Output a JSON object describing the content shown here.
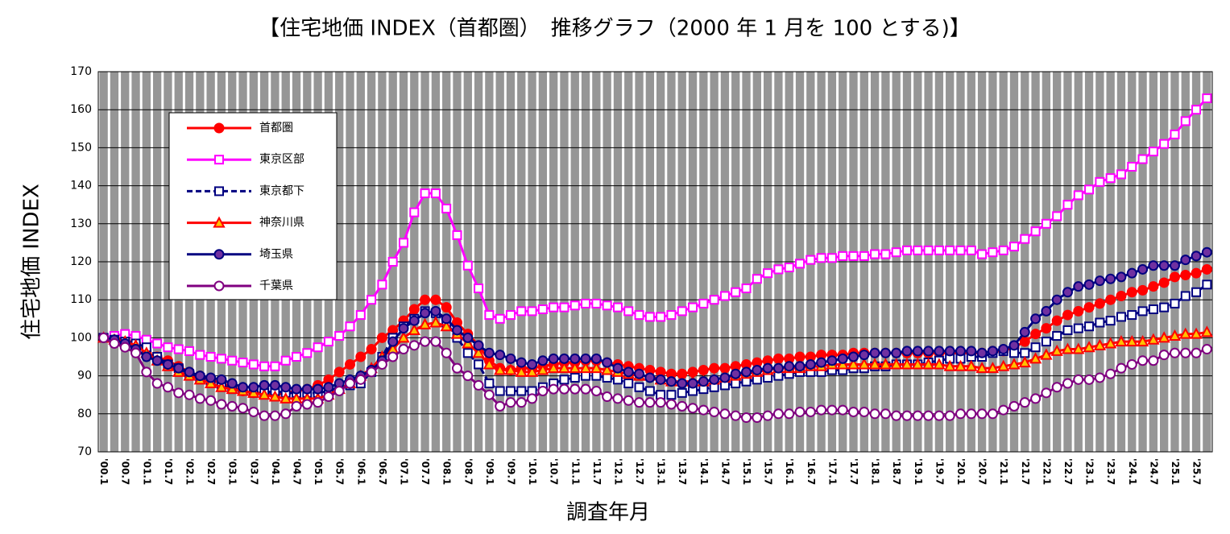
{
  "chart_data": {
    "type": "line",
    "title": "【住宅地価 INDEX（首都圏）　推移グラフ（2000 年 1 月を 100 とする)】",
    "y_label": "住宅地価 INDEX",
    "x_label": "調査年月",
    "categories": [
      "'00.1",
      null,
      "'00.7",
      null,
      "'01.1",
      null,
      "'01.7",
      null,
      "'02.1",
      null,
      "'02.7",
      null,
      "'03.1",
      null,
      "'03.7",
      null,
      "'04.1",
      null,
      "'04.7",
      null,
      "'05.1",
      null,
      "'05.7",
      null,
      "'06.1",
      null,
      "'06.7",
      null,
      "'07.1",
      null,
      "'07.7",
      null,
      "'08.1",
      null,
      "'08.7",
      null,
      "'09.1",
      null,
      "'09.7",
      null,
      "'10.1",
      null,
      "'10.7",
      null,
      "'11.1",
      null,
      "'11.7",
      null,
      "'12.1",
      null,
      "'12.7",
      null,
      "'13.1",
      null,
      "'13.7",
      null,
      "'14.1",
      null,
      "'14.7",
      null,
      "'15.1",
      null,
      "'15.7",
      null,
      "'16.1",
      null,
      "'16.7",
      null,
      "'17.1",
      null,
      "'17.7",
      null,
      "'18.1",
      null,
      "'18.7",
      null,
      "'19.1",
      null,
      "'19.7",
      null,
      "'20.1",
      null,
      "'20.7",
      null,
      "'21.1",
      null,
      "'21.7",
      null,
      "'22.1",
      null,
      "'22.7",
      null,
      "'23.1",
      null,
      "'23.7",
      null,
      "'24.1",
      null,
      "'24.7",
      null,
      "'25.1",
      null,
      "'25.7",
      null
    ],
    "ylim": [
      70,
      170
    ],
    "yticks": [
      70,
      80,
      90,
      100,
      110,
      120,
      130,
      140,
      150,
      160,
      170
    ],
    "grid": true,
    "series": [
      {
        "name": "首都圏",
        "color": "#ff0000",
        "marker": "circle",
        "marker_fill": "#ff0000",
        "dashed": false,
        "values": [
          100,
          100,
          99.5,
          98.5,
          96,
          95,
          94,
          92.5,
          91,
          90,
          89,
          88,
          87,
          86,
          85.5,
          85.5,
          85,
          85.5,
          86,
          86.5,
          87.5,
          89,
          91,
          93,
          95,
          97,
          100,
          102,
          104.5,
          107.5,
          110,
          110,
          108,
          104,
          101,
          98,
          94,
          92,
          91.5,
          92,
          92,
          92.5,
          93,
          93.5,
          93.5,
          94,
          94,
          93.5,
          93,
          92.5,
          92,
          91.5,
          91,
          90.5,
          90.5,
          91,
          91.5,
          92,
          92,
          92.5,
          93,
          93.5,
          94,
          94.5,
          94.5,
          95,
          95,
          95.5,
          95.5,
          95.5,
          96,
          96,
          96,
          96,
          96,
          96,
          96,
          96,
          96,
          96,
          96,
          96,
          96,
          96.5,
          96.5,
          97.5,
          99,
          101,
          102.5,
          104.5,
          106,
          107,
          108,
          109,
          110,
          111,
          112,
          112.5,
          113.5,
          114.5,
          116,
          116.5,
          117,
          118
        ]
      },
      {
        "name": "東京区部",
        "color": "#ff00ff",
        "marker": "square",
        "marker_fill": "#ffffff",
        "dashed": false,
        "values": [
          100,
          100.5,
          101,
          100.5,
          99.5,
          98.5,
          97.5,
          97,
          96.5,
          95.5,
          95,
          94.5,
          94,
          93.5,
          93,
          92.5,
          92.5,
          94,
          95,
          96,
          97.5,
          99,
          100.5,
          103,
          106,
          110,
          114,
          120,
          125,
          133,
          138,
          138,
          134,
          127,
          119,
          113,
          106,
          105,
          106,
          107,
          107,
          107.5,
          108,
          108,
          108.5,
          109,
          109,
          108.5,
          108,
          107,
          106,
          105.5,
          105.5,
          106,
          107,
          108,
          109,
          110,
          111,
          112,
          113,
          115.5,
          117,
          118,
          118.5,
          119.5,
          120.5,
          121,
          121,
          121.5,
          121.5,
          121.5,
          122,
          122,
          122.5,
          123,
          123,
          123,
          123,
          123,
          123,
          123,
          122,
          122.5,
          123,
          124,
          126,
          128,
          130,
          132,
          135,
          137.5,
          139,
          141,
          142,
          143,
          145,
          147,
          149,
          151,
          153.5,
          157,
          160,
          163
        ]
      },
      {
        "name": "東京都下",
        "color": "#000080",
        "marker": "square",
        "marker_fill": "#ffffff",
        "dashed": true,
        "values": [
          100,
          99.5,
          99,
          98.5,
          97.5,
          95,
          93,
          92,
          90.5,
          89.5,
          88.5,
          87.5,
          86.5,
          86,
          85.5,
          85.5,
          86,
          85.5,
          85.5,
          85.5,
          85.5,
          86,
          87,
          87.5,
          88,
          91,
          95,
          100,
          103,
          105,
          107,
          106.5,
          104,
          100,
          96,
          93,
          88,
          86,
          86,
          86,
          86,
          87,
          88,
          89,
          89.5,
          90,
          90,
          89.5,
          89,
          88,
          87,
          86,
          85,
          85,
          85.5,
          86,
          86.5,
          87,
          87.5,
          88,
          88.5,
          89,
          89.5,
          90,
          90.5,
          91,
          91,
          91,
          91.5,
          91.5,
          92,
          92,
          92.5,
          92.5,
          93,
          93,
          93,
          93.5,
          94,
          94.5,
          94.5,
          95,
          95,
          96,
          96.5,
          96,
          96,
          97.5,
          99,
          100.5,
          102,
          102.5,
          103,
          104,
          104.5,
          105.5,
          106,
          107,
          107.5,
          108,
          109,
          111,
          112,
          114
        ]
      },
      {
        "name": "神奈川県",
        "color": "#ff0000",
        "marker": "triangle",
        "marker_fill": "#ffc000",
        "dashed": false,
        "values": [
          100,
          99.5,
          99,
          98,
          96,
          94,
          92.5,
          91,
          90,
          89,
          88,
          87,
          86.5,
          86,
          85.5,
          85,
          84.5,
          84,
          84,
          84,
          84,
          85,
          86.5,
          88,
          90,
          92,
          95,
          97,
          100,
          102,
          103.5,
          104,
          103,
          101,
          98.5,
          96,
          93,
          91.5,
          91.5,
          91,
          91,
          91.5,
          92,
          92,
          92,
          92,
          92,
          91.5,
          91,
          90.5,
          90,
          90,
          89,
          88.5,
          88.5,
          88.5,
          88.5,
          89,
          89.5,
          90,
          90.5,
          91,
          91.5,
          92,
          92,
          92,
          92.5,
          92.5,
          93,
          93,
          93,
          93,
          93,
          93,
          93,
          93,
          93,
          93,
          93,
          92.5,
          92.5,
          92.5,
          92,
          92,
          92.5,
          93,
          93.5,
          94.5,
          95.5,
          96.5,
          97,
          97,
          97.5,
          98,
          98.5,
          99,
          99,
          99,
          99.5,
          100,
          100.5,
          101,
          101,
          101.5
        ]
      },
      {
        "name": "埼玉県",
        "color": "#000080",
        "marker": "circle",
        "marker_fill": "#7030a0",
        "dashed": false,
        "values": [
          100,
          99.5,
          98.5,
          97,
          95,
          94,
          93,
          92,
          91,
          90,
          89.5,
          89,
          88,
          87,
          87,
          87.5,
          87.5,
          87,
          86.5,
          86.5,
          86.5,
          87,
          88,
          89,
          90,
          91.5,
          94,
          99,
          102.5,
          104.5,
          106.5,
          107,
          105,
          102,
          100,
          98,
          96,
          95.5,
          94.5,
          93.5,
          93,
          94,
          94.5,
          94.5,
          94.5,
          94.5,
          94.5,
          93.5,
          92,
          91,
          90.5,
          89.5,
          89,
          88.5,
          88,
          88,
          88.5,
          89,
          89.5,
          90.5,
          91,
          91.5,
          92,
          92,
          92.5,
          92.5,
          93,
          93.5,
          94,
          94.5,
          95,
          95.5,
          96,
          96,
          96,
          96.5,
          96.5,
          96.5,
          96.5,
          96.5,
          96.5,
          96.5,
          96,
          96.5,
          97,
          98,
          101.5,
          105,
          107,
          110,
          112,
          113.5,
          114,
          115,
          115.5,
          116,
          117,
          118,
          119,
          119,
          119,
          120.5,
          121.5,
          122.5
        ]
      },
      {
        "name": "千葉県",
        "color": "#800080",
        "marker": "circle",
        "marker_fill": "#ffffff",
        "dashed": false,
        "values": [
          100,
          98.5,
          97.5,
          96,
          91,
          88,
          87,
          85.5,
          85,
          84,
          83.5,
          82.5,
          82,
          81.5,
          80.5,
          79.5,
          79.5,
          80,
          82,
          82.5,
          83,
          84.5,
          86,
          88,
          89,
          91,
          93,
          95,
          97,
          98,
          99,
          99,
          96,
          92,
          90,
          87.5,
          85,
          82,
          83,
          83,
          84,
          86,
          86.5,
          86.5,
          86.5,
          86.5,
          86,
          84.5,
          84,
          83.5,
          83,
          83,
          83,
          82.5,
          82,
          81.5,
          81,
          80.5,
          80,
          79.5,
          79,
          79,
          79.5,
          80,
          80,
          80.5,
          80.5,
          81,
          81,
          81,
          80.5,
          80.5,
          80,
          80,
          79.5,
          79.5,
          79.5,
          79.5,
          79.5,
          79.5,
          80,
          80,
          80,
          80,
          81,
          82,
          83,
          84,
          85.5,
          87,
          88,
          89,
          89,
          89.5,
          90.5,
          92,
          93,
          94,
          94,
          95.5,
          96,
          96,
          96,
          97
        ]
      }
    ]
  }
}
